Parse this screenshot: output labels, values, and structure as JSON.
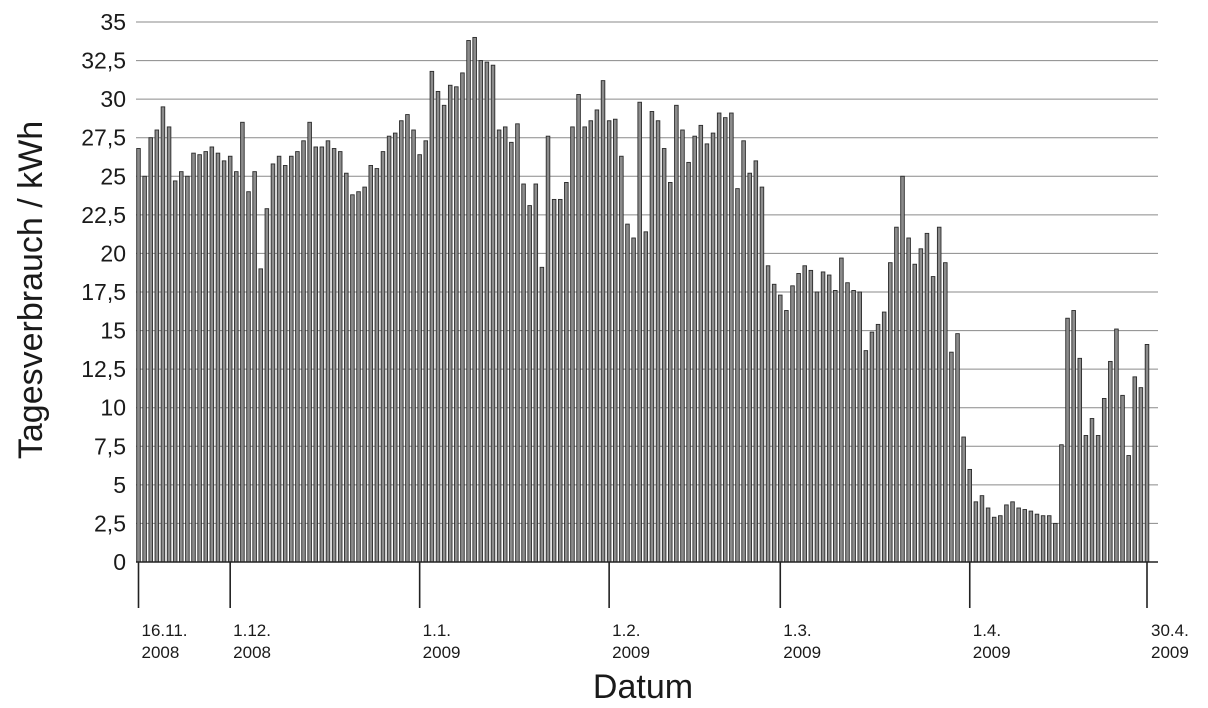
{
  "chart_data": {
    "type": "bar",
    "title": "",
    "xlabel": "Datum",
    "ylabel": "Tagesverbrauch / kWh",
    "ylim": [
      0,
      35
    ],
    "grid": true,
    "y_ticks": [
      "0",
      "2,5",
      "5",
      "7,5",
      "10",
      "12,5",
      "15",
      "17,5",
      "20",
      "22,5",
      "25",
      "27,5",
      "30",
      "32,5",
      "35"
    ],
    "x_ticks": [
      {
        "index": 0,
        "line1": "16.11.",
        "line2": "2008"
      },
      {
        "index": 15,
        "line1": "1.12.",
        "line2": "2008"
      },
      {
        "index": 46,
        "line1": "1.1.",
        "line2": "2009"
      },
      {
        "index": 77,
        "line1": "1.2.",
        "line2": "2009"
      },
      {
        "index": 105,
        "line1": "1.3.",
        "line2": "2009"
      },
      {
        "index": 136,
        "line1": "1.4.",
        "line2": "2009"
      },
      {
        "index": 165,
        "line1": "30.4.",
        "line2": "2009"
      }
    ],
    "values": [
      26.8,
      25.0,
      27.5,
      28.0,
      29.5,
      28.2,
      24.7,
      25.3,
      25.0,
      26.5,
      26.4,
      26.6,
      26.9,
      26.5,
      26.0,
      26.3,
      25.3,
      28.5,
      24.0,
      25.3,
      19.0,
      22.9,
      25.8,
      26.3,
      25.7,
      26.3,
      26.6,
      27.3,
      28.5,
      26.9,
      26.9,
      27.3,
      26.8,
      26.6,
      25.2,
      23.8,
      24.0,
      24.3,
      25.7,
      25.5,
      26.6,
      27.6,
      27.8,
      28.6,
      29.0,
      28.0,
      26.4,
      27.3,
      31.8,
      30.5,
      29.6,
      30.9,
      30.8,
      31.7,
      33.8,
      34.0,
      32.5,
      32.4,
      32.2,
      28.0,
      28.2,
      27.2,
      28.4,
      24.5,
      23.1,
      24.5,
      19.1,
      27.6,
      23.5,
      23.5,
      24.6,
      28.2,
      30.3,
      28.2,
      28.6,
      29.3,
      31.2,
      28.6,
      28.7,
      26.3,
      21.9,
      21.0,
      29.8,
      21.4,
      29.2,
      28.6,
      26.8,
      24.6,
      29.6,
      28.0,
      25.9,
      27.6,
      28.3,
      27.1,
      27.8,
      29.1,
      28.8,
      29.1,
      24.2,
      27.3,
      25.2,
      26.0,
      24.3,
      19.2,
      18.0,
      17.3,
      16.3,
      17.9,
      18.7,
      19.2,
      18.9,
      17.5,
      18.8,
      18.6,
      17.6,
      19.7,
      18.1,
      17.6,
      17.5,
      13.7,
      14.9,
      15.4,
      16.2,
      19.4,
      21.7,
      25.0,
      21.0,
      19.3,
      20.3,
      21.3,
      18.5,
      21.7,
      19.4,
      13.6,
      14.8,
      8.1,
      6.0,
      3.9,
      4.3,
      3.5,
      2.9,
      3.0,
      3.7,
      3.9,
      3.5,
      3.4,
      3.3,
      3.1,
      3.0,
      3.0,
      2.5,
      7.6,
      15.8,
      16.3,
      13.2,
      8.2,
      9.3,
      8.2,
      10.6,
      13.0,
      15.1,
      10.8,
      6.9,
      12.0,
      11.3,
      14.1
    ]
  }
}
